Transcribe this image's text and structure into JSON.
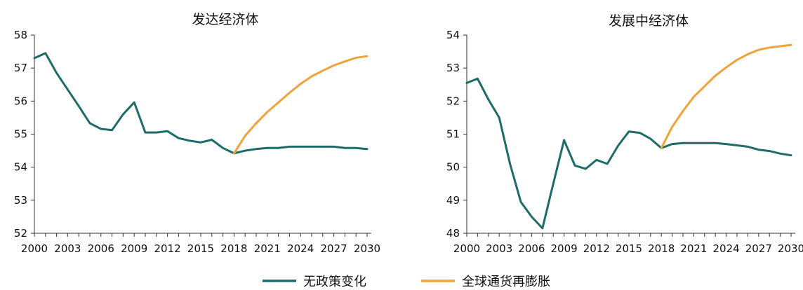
{
  "colors": {
    "no_policy": "#1e6b68",
    "reinflation": "#f0a33a",
    "axis": "#333333"
  },
  "legend": [
    {
      "name": "无政策变化",
      "color": "#1e6b68"
    },
    {
      "name": "全球通货再膨胀",
      "color": "#f0a33a"
    }
  ],
  "chart_data": [
    {
      "type": "line",
      "title": "发达经济体",
      "xlim": [
        2000,
        2030
      ],
      "ylim": [
        52,
        58
      ],
      "yticks": [
        "52",
        "53",
        "54",
        "55",
        "56",
        "57",
        "58"
      ],
      "xticks": [
        "2000",
        "2003",
        "2006",
        "2009",
        "2012",
        "2015",
        "2018",
        "2021",
        "2024",
        "2027",
        "2030"
      ],
      "series": [
        {
          "name": "无政策变化",
          "color": "#1e6b68",
          "x": [
            2000,
            2001,
            2002,
            2003,
            2004,
            2005,
            2006,
            2007,
            2008,
            2009,
            2010,
            2011,
            2012,
            2013,
            2014,
            2015,
            2016,
            2017,
            2018,
            2019,
            2020,
            2021,
            2022,
            2023,
            2024,
            2025,
            2026,
            2027,
            2028,
            2029,
            2030
          ],
          "y": [
            57.3,
            57.45,
            56.85,
            56.35,
            55.85,
            55.33,
            55.16,
            55.12,
            55.6,
            55.96,
            55.05,
            55.05,
            55.09,
            54.88,
            54.8,
            54.75,
            54.83,
            54.58,
            54.42,
            54.5,
            54.55,
            54.58,
            54.58,
            54.62,
            54.62,
            54.62,
            54.62,
            54.62,
            54.58,
            54.58,
            54.55
          ]
        },
        {
          "name": "全球通货再膨胀",
          "color": "#f0a33a",
          "x": [
            2018,
            2019,
            2020,
            2021,
            2022,
            2023,
            2024,
            2025,
            2026,
            2027,
            2028,
            2029,
            2030
          ],
          "y": [
            54.42,
            54.95,
            55.33,
            55.67,
            55.96,
            56.25,
            56.52,
            56.75,
            56.92,
            57.08,
            57.2,
            57.31,
            57.36
          ]
        }
      ]
    },
    {
      "type": "line",
      "title": "发展中经济体",
      "xlim": [
        2000,
        2030
      ],
      "ylim": [
        48,
        54
      ],
      "yticks": [
        "48",
        "49",
        "50",
        "51",
        "52",
        "53",
        "54"
      ],
      "xticks": [
        "2000",
        "2003",
        "2006",
        "2009",
        "2012",
        "2015",
        "2018",
        "2021",
        "2024",
        "2027",
        "2030"
      ],
      "series": [
        {
          "name": "无政策变化",
          "color": "#1e6b68",
          "x": [
            2000,
            2001,
            2002,
            2003,
            2004,
            2005,
            2006,
            2007,
            2008,
            2009,
            2010,
            2011,
            2012,
            2013,
            2014,
            2015,
            2016,
            2017,
            2018,
            2019,
            2020,
            2021,
            2022,
            2023,
            2024,
            2025,
            2026,
            2027,
            2028,
            2029,
            2030
          ],
          "y": [
            52.55,
            52.68,
            52.05,
            51.5,
            50.1,
            48.95,
            48.5,
            48.15,
            49.5,
            50.82,
            50.05,
            49.95,
            50.22,
            50.1,
            50.65,
            51.08,
            51.04,
            50.86,
            50.58,
            50.7,
            50.73,
            50.73,
            50.73,
            50.73,
            50.7,
            50.66,
            50.62,
            50.53,
            50.49,
            50.41,
            50.36
          ]
        },
        {
          "name": "全球通货再膨胀",
          "color": "#f0a33a",
          "x": [
            2018,
            2019,
            2020,
            2021,
            2022,
            2023,
            2024,
            2025,
            2026,
            2027,
            2028,
            2029,
            2030
          ],
          "y": [
            50.58,
            51.22,
            51.7,
            52.13,
            52.45,
            52.77,
            53.02,
            53.25,
            53.42,
            53.55,
            53.62,
            53.66,
            53.7
          ]
        }
      ]
    }
  ]
}
